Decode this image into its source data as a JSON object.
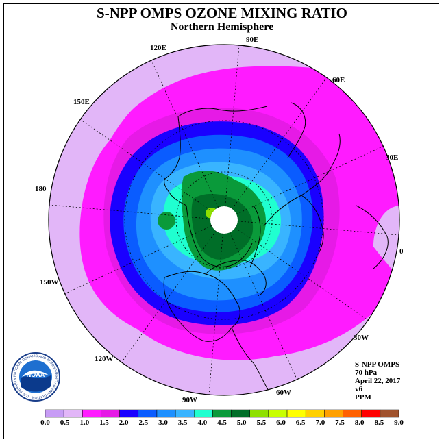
{
  "title": "S-NPP OMPS OZONE MIXING RATIO",
  "subtitle": "Northern Hemisphere",
  "longitude_labels": [
    "90E",
    "60E",
    "30E",
    "0",
    "30W",
    "60W",
    "90W",
    "120W",
    "150W",
    "180",
    "150E",
    "120E"
  ],
  "info": {
    "product": "S-NPP OMPS",
    "level": "70 hPa",
    "date": "April 22, 2017",
    "version": "v6",
    "units": "PPM"
  },
  "logo": {
    "text": "NOAA",
    "ring_text": "NATIONAL OCEANIC AND ATMOSPHERIC ADMINISTRATION · U.S. DEPARTMENT OF COMMERCE"
  },
  "colorbar": {
    "ticks": [
      "0.0",
      "0.5",
      "1.0",
      "1.5",
      "2.0",
      "2.5",
      "3.0",
      "3.5",
      "4.0",
      "4.5",
      "5.0",
      "5.5",
      "6.0",
      "6.5",
      "7.0",
      "7.5",
      "8.0",
      "8.5",
      "9.0"
    ],
    "colors": [
      "#c79cf5",
      "#e2b6f8",
      "#ff1bff",
      "#e61ae6",
      "#1a00ff",
      "#0a5cff",
      "#1e90ff",
      "#39b4ff",
      "#20ffd0",
      "#0a9a3a",
      "#006e28",
      "#8fe000",
      "#c8ff00",
      "#ffff00",
      "#ffd000",
      "#ffa000",
      "#ff6000",
      "#ff0000",
      "#a0522d"
    ]
  }
}
